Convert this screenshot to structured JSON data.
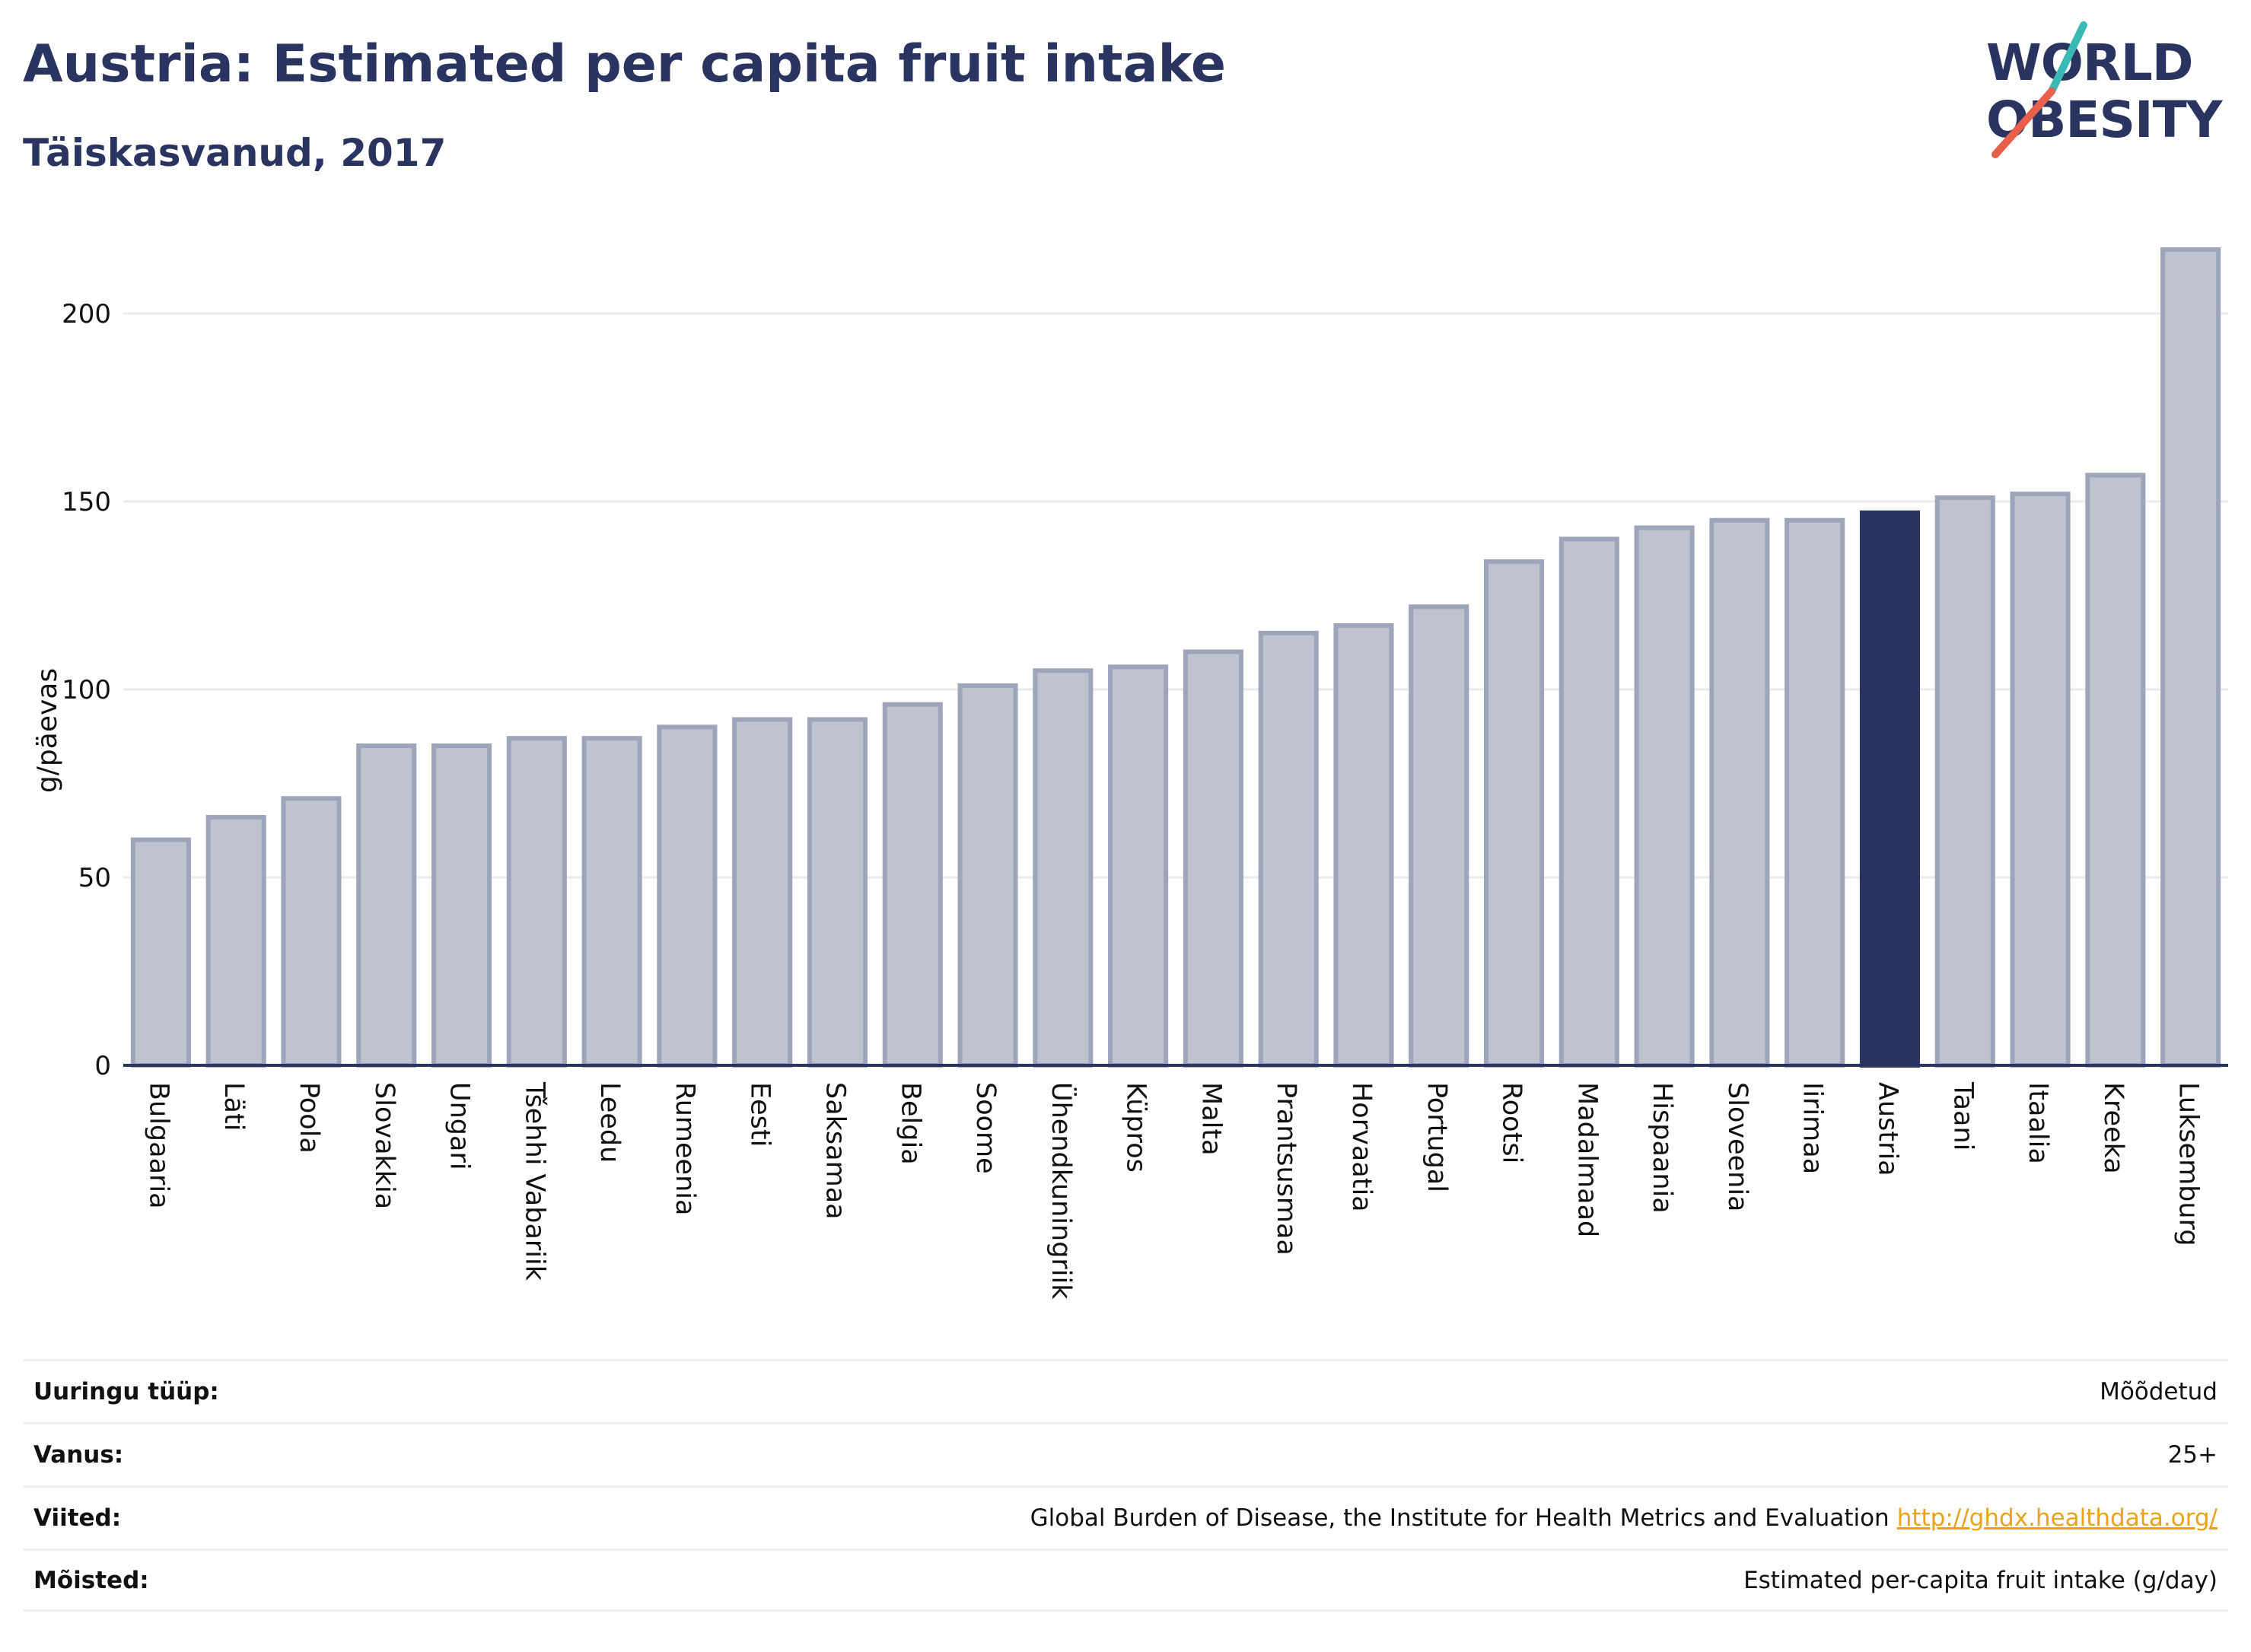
{
  "header": {
    "title": "Austria: Estimated per capita fruit intake",
    "subtitle": "Täiskasvanud, 2017",
    "logo_text": "WORLD OBESITY"
  },
  "colors": {
    "bar_default": "#bfc3d0",
    "bar_default_stroke": "#9ea4ba",
    "bar_highlight": "#2a3461",
    "axis": "#2a3461",
    "grid": "#e8eaee",
    "logo_teal": "#3bb9b5",
    "logo_red": "#e8604c",
    "link": "#e8a317"
  },
  "chart_data": {
    "type": "bar",
    "ylabel": "g/päevas",
    "xlabel": "",
    "ylim": [
      0,
      220
    ],
    "yticks": [
      0,
      50,
      100,
      150,
      200
    ],
    "grid": true,
    "highlight": "Austria",
    "categories": [
      "Bulgaaria",
      "Läti",
      "Poola",
      "Slovakkia",
      "Ungari",
      "Tšehhi Vabariik",
      "Leedu",
      "Rumeenia",
      "Eesti",
      "Saksamaa",
      "Belgia",
      "Soome",
      "Ühendkuningriik",
      "Küpros",
      "Malta",
      "Prantsusmaa",
      "Horvaatia",
      "Portugal",
      "Rootsi",
      "Madalmaad",
      "Hispaania",
      "Sloveenia",
      "Iirimaa",
      "Austria",
      "Taani",
      "Itaalia",
      "Kreeka",
      "Luksemburg"
    ],
    "values": [
      60,
      66,
      71,
      85,
      85,
      87,
      87,
      90,
      92,
      92,
      96,
      101,
      105,
      106,
      110,
      115,
      117,
      122,
      134,
      140,
      143,
      145,
      145,
      147,
      151,
      152,
      157,
      217
    ]
  },
  "meta": {
    "rows": [
      {
        "label": "Uuringu tüüp:",
        "value": "Mõõdetud"
      },
      {
        "label": "Vanus:",
        "value": "25+"
      },
      {
        "label": "Viited:",
        "value": "Global Burden of Disease, the Institute for Health Metrics and Evaluation",
        "link": "http://ghdx.healthdata.org/"
      },
      {
        "label": "Mõisted:",
        "value": "Estimated per-capita fruit intake (g/day)"
      }
    ]
  }
}
